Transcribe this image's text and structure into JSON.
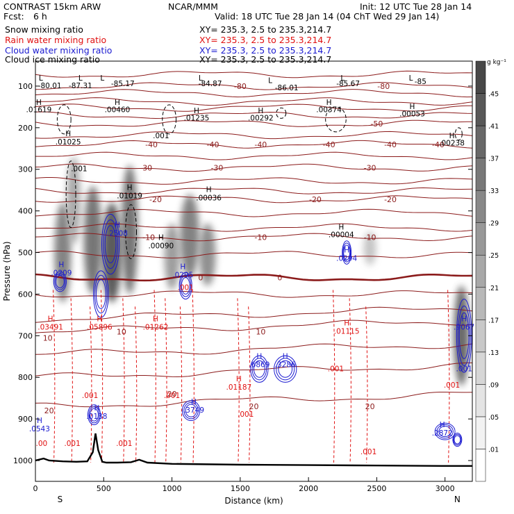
{
  "header": {
    "title": "CONTRAST 15km ARW",
    "fcst_label": "Fcst:",
    "fcst_value": "6 h",
    "source": "NCAR/MMM",
    "init": "Init: 12 UTC Tue 28 Jan 14",
    "valid": "Valid: 18 UTC Tue 28 Jan 14 (04 ChT Wed 29 Jan 14)",
    "fields": [
      {
        "label": "Snow mixing ratio",
        "xy": "XY= 235.3,  2.5 to 235.3,214.7",
        "color": "#000000"
      },
      {
        "label": "Rain water mixing ratio",
        "xy": "XY= 235.3,  2.5 to 235.3,214.7",
        "color": "#e01010"
      },
      {
        "label": "Cloud water mixing ratio",
        "xy": "XY= 235.3,  2.5 to 235.3,214.7",
        "color": "#1a1ad0"
      },
      {
        "label": "Cloud ice mixing ratio",
        "xy": "XY= 235.3,  2.5 to 235.3,214.7",
        "color": "#000000"
      }
    ]
  },
  "chart_data": {
    "type": "cross-section",
    "xlabel": "Distance (km)",
    "ylabel": "Pressure (hPa)",
    "xlim": [
      0,
      3200
    ],
    "ylim": [
      1050,
      40
    ],
    "x_ticks": [
      0,
      500,
      1000,
      1500,
      2000,
      2500,
      3000
    ],
    "y_ticks": [
      100,
      200,
      300,
      400,
      500,
      600,
      700,
      800,
      900,
      1000
    ],
    "endpoints": {
      "left": "S",
      "right": "N"
    },
    "colorbar": {
      "unit": "g kg⁻¹",
      "levels": [
        ".01",
        ".05",
        ".09",
        ".13",
        ".17",
        ".21",
        ".25",
        ".29",
        ".33",
        ".37",
        ".41",
        ".45"
      ],
      "colors": [
        "#ffffff",
        "#f2f2f2",
        "#e4e4e4",
        "#d6d6d6",
        "#c8c8c8",
        "#b8b8b8",
        "#a8a8a8",
        "#989898",
        "#888888",
        "#787878",
        "#686868",
        "#585858",
        "#484848"
      ]
    },
    "temperature_contours": {
      "color": "#8b1a1a",
      "lines": [
        {
          "label": "-80",
          "p": 100,
          "x": [
            1500,
            2550
          ]
        },
        {
          "label": "-50",
          "p": 190,
          "x": [
            2500
          ]
        },
        {
          "label": "-40",
          "p": 240,
          "x": [
            850,
            1300,
            1650,
            2150,
            2600,
            2950
          ]
        },
        {
          "label": "-30",
          "p": 296,
          "x": [
            810,
            1330,
            2450
          ]
        },
        {
          "label": "-20",
          "p": 372,
          "x": [
            880,
            2050,
            2600
          ]
        },
        {
          "label": "-10",
          "p": 463,
          "x": [
            830,
            1650,
            2450
          ]
        },
        {
          "label": "0",
          "p": 560,
          "x": [
            1210,
            1790
          ]
        },
        {
          "label": "10",
          "p": 690,
          "x": [
            630,
            1650
          ]
        },
        {
          "label": "20",
          "p": 870,
          "x": [
            1600,
            2450
          ]
        }
      ],
      "surface_labels": [
        {
          "label": "10",
          "x": 90,
          "p": 705
        },
        {
          "label": "20",
          "x": 100,
          "p": 880
        },
        {
          "label": "20",
          "x": 1000,
          "p": 840
        }
      ]
    },
    "rain_annotations": [
      {
        "text": "H",
        "x": 110,
        "p": 665
      },
      {
        "text": ".03491",
        "x": 110,
        "p": 685
      },
      {
        "text": "H",
        "x": 470,
        "p": 665
      },
      {
        "text": ".05896",
        "x": 470,
        "p": 685
      },
      {
        "text": "H",
        "x": 880,
        "p": 665
      },
      {
        "text": ".01262",
        "x": 880,
        "p": 685
      },
      {
        "text": "H",
        "x": 1490,
        "p": 810
      },
      {
        "text": ".01187",
        "x": 1490,
        "p": 830
      },
      {
        "text": "H",
        "x": 2280,
        "p": 675
      },
      {
        "text": ".01115",
        "x": 2280,
        "p": 695
      },
      {
        "text": ".001",
        "x": 400,
        "p": 850
      },
      {
        "text": ".001",
        "x": 270,
        "p": 965
      },
      {
        "text": ".001",
        "x": 650,
        "p": 965
      },
      {
        "text": ".001",
        "x": 1000,
        "p": 850
      },
      {
        "text": ".001",
        "x": 1540,
        "p": 895
      },
      {
        "text": ".001",
        "x": 2200,
        "p": 785
      },
      {
        "text": ".001",
        "x": 2440,
        "p": 985
      },
      {
        "text": ".001",
        "x": 1100,
        "p": 590
      },
      {
        "text": ".001",
        "x": 3050,
        "p": 825
      },
      {
        "text": ".00",
        "x": 45,
        "p": 965
      }
    ],
    "cloud_water_annotations": [
      {
        "text": "H",
        "x": 600,
        "p": 440
      },
      {
        "text": ".2508",
        "x": 600,
        "p": 460
      },
      {
        "text": "H",
        "x": 190,
        "p": 535
      },
      {
        "text": ".0209",
        "x": 190,
        "p": 555
      },
      {
        "text": "H",
        "x": 1080,
        "p": 540
      },
      {
        "text": ".0295",
        "x": 1080,
        "p": 560
      },
      {
        "text": "H",
        "x": 2280,
        "p": 500
      },
      {
        "text": ".0294",
        "x": 2280,
        "p": 520
      },
      {
        "text": "H",
        "x": 1640,
        "p": 755
      },
      {
        "text": ".6869",
        "x": 1640,
        "p": 775
      },
      {
        "text": "H",
        "x": 1830,
        "p": 755
      },
      {
        "text": ".3286",
        "x": 1830,
        "p": 775
      },
      {
        "text": "H",
        "x": 450,
        "p": 880
      },
      {
        "text": ".0138",
        "x": 450,
        "p": 900
      },
      {
        "text": "H",
        "x": 1160,
        "p": 865
      },
      {
        "text": ".3749",
        "x": 1160,
        "p": 885
      },
      {
        "text": "H",
        "x": 30,
        "p": 910
      },
      {
        "text": ".0543",
        "x": 30,
        "p": 930
      },
      {
        "text": "H",
        "x": 2980,
        "p": 920
      },
      {
        "text": ".2872",
        "x": 2980,
        "p": 940
      },
      {
        "text": "H",
        "x": 3140,
        "p": 665
      },
      {
        "text": ".9067",
        "x": 3140,
        "p": 685
      },
      {
        "text": ".001",
        "x": 3140,
        "p": 785
      }
    ],
    "snow_ice_annotations": [
      {
        "text": "L",
        "x": 40,
        "p": 87
      },
      {
        "text": "-80.01",
        "x": 105,
        "p": 105
      },
      {
        "text": "L",
        "x": 330,
        "p": 87
      },
      {
        "text": "-87.31",
        "x": 330,
        "p": 105
      },
      {
        "text": "L",
        "x": 490,
        "p": 87
      },
      {
        "text": "-85.17",
        "x": 640,
        "p": 100
      },
      {
        "text": "L",
        "x": 1210,
        "p": 87
      },
      {
        "text": "-84.87",
        "x": 1280,
        "p": 100
      },
      {
        "text": "L",
        "x": 1720,
        "p": 93
      },
      {
        "text": "-86.01",
        "x": 1840,
        "p": 110
      },
      {
        "text": "L",
        "x": 2250,
        "p": 87
      },
      {
        "text": "-85.67",
        "x": 2290,
        "p": 100
      },
      {
        "text": "L",
        "x": 2750,
        "p": 87
      },
      {
        "text": "-85",
        "x": 2820,
        "p": 95
      },
      {
        "text": "H",
        "x": 25,
        "p": 145
      },
      {
        "text": ".01619",
        "x": 25,
        "p": 163
      },
      {
        "text": "H",
        "x": 600,
        "p": 145
      },
      {
        "text": ".00460",
        "x": 600,
        "p": 163
      },
      {
        "text": "H",
        "x": 1180,
        "p": 165
      },
      {
        "text": ".01235",
        "x": 1180,
        "p": 183
      },
      {
        "text": "H",
        "x": 1650,
        "p": 165
      },
      {
        "text": ".00292",
        "x": 1650,
        "p": 183
      },
      {
        "text": "H",
        "x": 2150,
        "p": 145
      },
      {
        "text": ".00374",
        "x": 2150,
        "p": 163
      },
      {
        "text": "H",
        "x": 2760,
        "p": 155
      },
      {
        "text": ".00053",
        "x": 2760,
        "p": 173
      },
      {
        "text": "H",
        "x": 3050,
        "p": 225
      },
      {
        "text": ".00238",
        "x": 3050,
        "p": 243
      },
      {
        "text": "H",
        "x": 240,
        "p": 220
      },
      {
        "text": ".01025",
        "x": 240,
        "p": 240
      },
      {
        "text": ".001",
        "x": 320,
        "p": 305
      },
      {
        "text": ".001",
        "x": 920,
        "p": 225
      },
      {
        "text": "H",
        "x": 690,
        "p": 350
      },
      {
        "text": ".01019",
        "x": 690,
        "p": 370
      },
      {
        "text": "H",
        "x": 1270,
        "p": 355
      },
      {
        "text": ".00036",
        "x": 1270,
        "p": 375
      },
      {
        "text": "H",
        "x": 920,
        "p": 470
      },
      {
        "text": ".00090",
        "x": 920,
        "p": 490
      },
      {
        "text": "H",
        "x": 2240,
        "p": 445
      },
      {
        "text": ".00004",
        "x": 2240,
        "p": 463
      }
    ],
    "snow_shading": [
      {
        "x": 200,
        "ptop": 380,
        "pbot": 620,
        "w": 60,
        "v": 0.33
      },
      {
        "x": 280,
        "ptop": 270,
        "pbot": 480,
        "w": 40,
        "v": 0.21
      },
      {
        "x": 420,
        "ptop": 340,
        "pbot": 600,
        "w": 70,
        "v": 0.37
      },
      {
        "x": 560,
        "ptop": 380,
        "pbot": 620,
        "w": 80,
        "v": 0.45
      },
      {
        "x": 690,
        "ptop": 290,
        "pbot": 600,
        "w": 60,
        "v": 0.37
      },
      {
        "x": 1000,
        "ptop": 430,
        "pbot": 590,
        "w": 50,
        "v": 0.25
      },
      {
        "x": 1130,
        "ptop": 360,
        "pbot": 560,
        "w": 80,
        "v": 0.33
      },
      {
        "x": 1260,
        "ptop": 430,
        "pbot": 580,
        "w": 60,
        "v": 0.29
      },
      {
        "x": 2450,
        "ptop": 450,
        "pbot": 530,
        "w": 30,
        "v": 0.13
      },
      {
        "x": 3120,
        "ptop": 580,
        "pbot": 820,
        "w": 50,
        "v": 0.41
      }
    ],
    "terrain": {
      "x": [
        0,
        60,
        100,
        200,
        300,
        380,
        420,
        440,
        460,
        490,
        520,
        600,
        700,
        760,
        820,
        1000,
        1500,
        2000,
        2500,
        3000,
        3200
      ],
      "p": [
        1000,
        995,
        1000,
        1002,
        1003,
        1002,
        980,
        935,
        975,
        1003,
        1005,
        1005,
        1004,
        998,
        1005,
        1008,
        1010,
        1011,
        1012,
        1013,
        1013
      ]
    }
  }
}
